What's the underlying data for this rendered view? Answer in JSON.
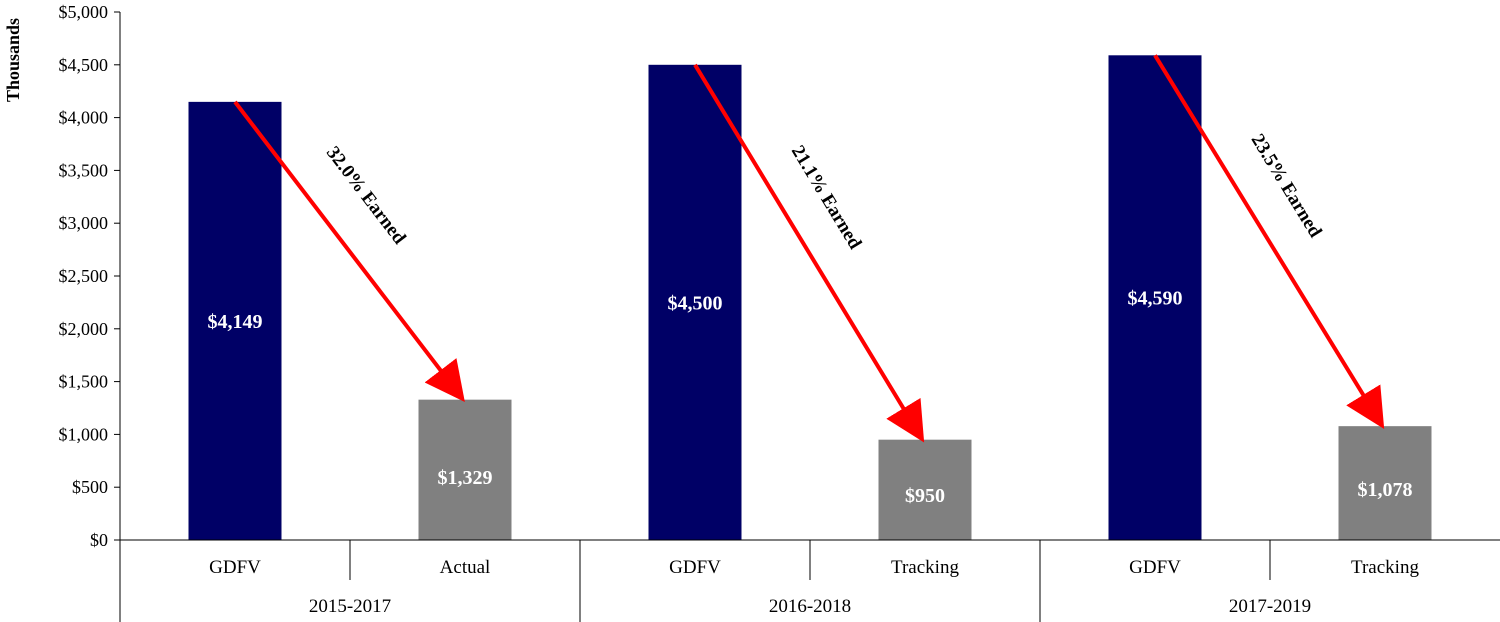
{
  "chart_data": {
    "type": "bar",
    "ylabel": "Thousands",
    "ylim": [
      0,
      5000
    ],
    "y_ticks": [
      0,
      500,
      1000,
      1500,
      2000,
      2500,
      3000,
      3500,
      4000,
      4500,
      5000
    ],
    "y_tick_labels": [
      "$0",
      "$500",
      "$1,000",
      "$1,500",
      "$2,000",
      "$2,500",
      "$3,000",
      "$3,500",
      "$4,000",
      "$4,500",
      "$5,000"
    ],
    "groups": [
      {
        "label": "2015-2017",
        "bars": [
          {
            "category": "GDFV",
            "value": 4149,
            "label": "$4,149",
            "color": "#000066"
          },
          {
            "category": "Actual",
            "value": 1329,
            "label": "$1,329",
            "color": "#808080"
          }
        ],
        "annotation": "32.0% Earned"
      },
      {
        "label": "2016-2018",
        "bars": [
          {
            "category": "GDFV",
            "value": 4500,
            "label": "$4,500",
            "color": "#000066"
          },
          {
            "category": "Tracking",
            "value": 950,
            "label": "$950",
            "color": "#808080"
          }
        ],
        "annotation": "21.1% Earned"
      },
      {
        "label": "2017-2019",
        "bars": [
          {
            "category": "GDFV",
            "value": 4590,
            "label": "$4,590",
            "color": "#000066"
          },
          {
            "category": "Tracking",
            "value": 1078,
            "label": "$1,078",
            "color": "#808080"
          }
        ],
        "annotation": "23.5% Earned"
      }
    ],
    "arrow_color": "#ff0000",
    "grid": false,
    "legend": "none"
  }
}
